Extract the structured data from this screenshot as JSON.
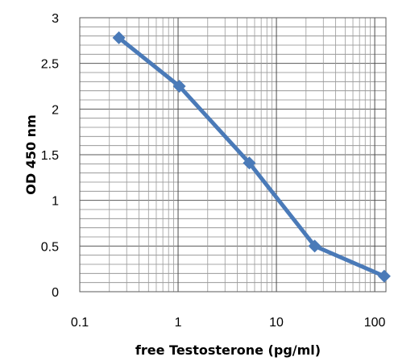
{
  "chart_data": {
    "type": "scatter",
    "title": "",
    "xlabel": "free Testosterone (pg/ml)",
    "ylabel": "OD 450 nm",
    "xscale": "log",
    "xlim": [
      0.1,
      130
    ],
    "ylim": [
      0,
      3
    ],
    "x_ticks": [
      0.1,
      1,
      10,
      100
    ],
    "x_tick_labels": [
      "0.1",
      "1",
      "10",
      "100"
    ],
    "y_ticks": [
      0,
      0.5,
      1,
      1.5,
      2,
      2.5,
      3
    ],
    "y_tick_labels": [
      "0",
      "0.5",
      "1",
      "1.5",
      "2",
      "2.5",
      "3"
    ],
    "y_minor_step": 0.1,
    "grid": true,
    "legend": "none",
    "series": [
      {
        "color": "#4a7ab8",
        "marker": "diamond",
        "lines": true,
        "x": [
          0.25,
          1.03,
          5.3,
          24.5,
          125
        ],
        "y": [
          2.78,
          2.25,
          1.41,
          0.5,
          0.17
        ]
      }
    ]
  }
}
